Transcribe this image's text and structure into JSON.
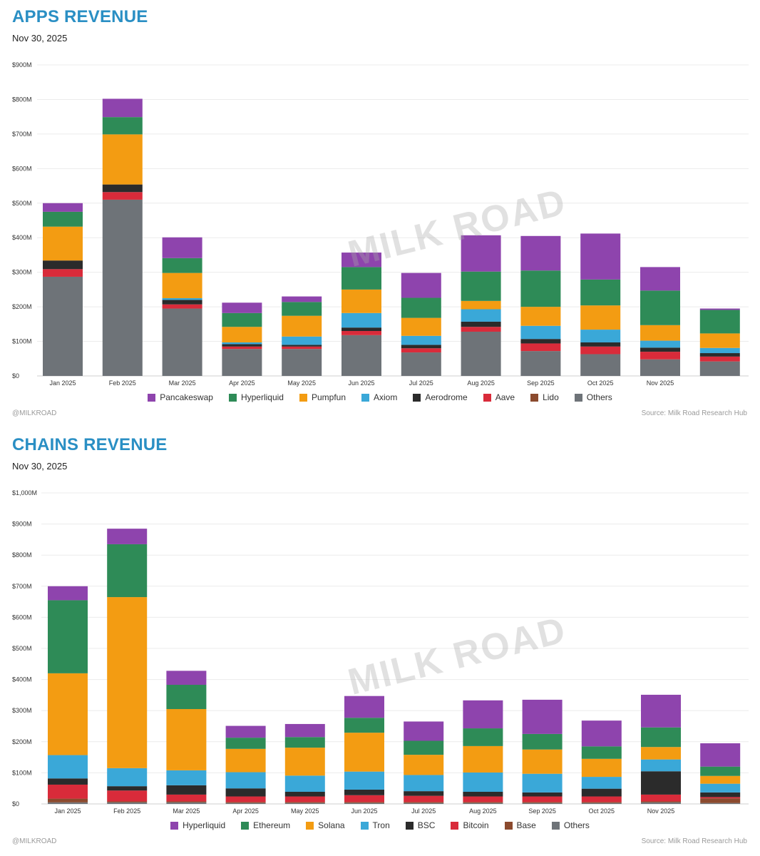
{
  "apps": {
    "title": "APPS REVENUE",
    "date": "Nov 30, 2025",
    "handle": "@MILKROAD",
    "source": "Source: Milk Road Research Hub",
    "watermark": "MILK ROAD",
    "chart_data": {
      "type": "bar",
      "stacked": true,
      "categories": [
        "Jan 2025",
        "Feb 2025",
        "Mar 2025",
        "Apr 2025",
        "May 2025",
        "Jun 2025",
        "Jul 2025",
        "Aug 2025",
        "Sep 2025",
        "Oct 2025",
        "Nov 2025",
        ""
      ],
      "y_ticks": [
        "$0",
        "$100M",
        "$200M",
        "$300M",
        "$400M",
        "$500M",
        "$600M",
        "$700M",
        "$800M",
        "$900M"
      ],
      "ylim": [
        0,
        900
      ],
      "unit": "$M",
      "grid": true,
      "legend_position": "bottom",
      "series": [
        {
          "name": "Others",
          "color": "#6e7378",
          "values": [
            287,
            510,
            195,
            78,
            78,
            118,
            68,
            128,
            72,
            63,
            48,
            42
          ]
        },
        {
          "name": "Lido",
          "color": "#8b4a2e",
          "values": [
            0,
            0,
            0,
            0,
            0,
            0,
            0,
            0,
            0,
            0,
            0,
            0
          ]
        },
        {
          "name": "Aave",
          "color": "#d92b3a",
          "values": [
            22,
            22,
            12,
            7,
            7,
            12,
            12,
            14,
            22,
            22,
            22,
            14
          ]
        },
        {
          "name": "Aerodrome",
          "color": "#2b2b2b",
          "values": [
            25,
            22,
            13,
            7,
            5,
            10,
            10,
            15,
            13,
            12,
            12,
            10
          ]
        },
        {
          "name": "Axiom",
          "color": "#3aa8d8",
          "values": [
            0,
            0,
            5,
            5,
            24,
            42,
            26,
            36,
            38,
            37,
            20,
            15
          ]
        },
        {
          "name": "Pumpfun",
          "color": "#f39c12",
          "values": [
            98,
            145,
            73,
            45,
            60,
            68,
            52,
            24,
            55,
            70,
            45,
            42
          ]
        },
        {
          "name": "Hyperliquid",
          "color": "#2e8b57",
          "values": [
            43,
            50,
            43,
            40,
            40,
            65,
            58,
            85,
            105,
            75,
            100,
            68
          ]
        },
        {
          "name": "Pancakeswap",
          "color": "#8e44ad",
          "values": [
            25,
            53,
            60,
            30,
            16,
            42,
            72,
            105,
            100,
            133,
            68,
            4
          ]
        }
      ],
      "legend_order": [
        "Pancakeswap",
        "Hyperliquid",
        "Pumpfun",
        "Axiom",
        "Aerodrome",
        "Aave",
        "Lido",
        "Others"
      ]
    }
  },
  "chains": {
    "title": "CHAINS REVENUE",
    "date": "Nov 30, 2025",
    "handle": "@MILKROAD",
    "source": "Source: Milk Road Research Hub",
    "watermark": "MILK ROAD",
    "chart_data": {
      "type": "bar",
      "stacked": true,
      "categories": [
        "Jan 2025",
        "Feb 2025",
        "Mar 2025",
        "Apr 2025",
        "May 2025",
        "Jun 2025",
        "Jul 2025",
        "Aug 2025",
        "Sep 2025",
        "Oct 2025",
        "Nov 2025",
        ""
      ],
      "y_ticks": [
        "$0",
        "$100M",
        "$200M",
        "$300M",
        "$400M",
        "$500M",
        "$600M",
        "$700M",
        "$800M",
        "$900M",
        "$1,000M"
      ],
      "ylim": [
        0,
        1000
      ],
      "unit": "$M",
      "grid": true,
      "legend_position": "bottom",
      "series": [
        {
          "name": "Others",
          "color": "#6e7378",
          "values": [
            5,
            5,
            5,
            3,
            3,
            3,
            3,
            3,
            3,
            3,
            5,
            3
          ]
        },
        {
          "name": "Base",
          "color": "#8b4a2e",
          "values": [
            12,
            3,
            3,
            3,
            3,
            3,
            3,
            3,
            3,
            3,
            3,
            15
          ]
        },
        {
          "name": "Bitcoin",
          "color": "#d92b3a",
          "values": [
            45,
            35,
            22,
            18,
            18,
            22,
            20,
            18,
            18,
            18,
            22,
            4
          ]
        },
        {
          "name": "BSC",
          "color": "#2b2b2b",
          "values": [
            20,
            14,
            30,
            26,
            15,
            18,
            15,
            15,
            13,
            25,
            75,
            15
          ]
        },
        {
          "name": "Tron",
          "color": "#3aa8d8",
          "values": [
            75,
            58,
            48,
            52,
            52,
            58,
            52,
            62,
            60,
            38,
            38,
            28
          ]
        },
        {
          "name": "Solana",
          "color": "#f39c12",
          "values": [
            263,
            550,
            197,
            75,
            90,
            125,
            65,
            85,
            78,
            58,
            40,
            25
          ]
        },
        {
          "name": "Ethereum",
          "color": "#2e8b57",
          "values": [
            235,
            170,
            78,
            36,
            34,
            48,
            45,
            57,
            50,
            40,
            63,
            30
          ]
        },
        {
          "name": "Hyperliquid",
          "color": "#8e44ad",
          "values": [
            45,
            50,
            45,
            38,
            42,
            70,
            62,
            90,
            110,
            83,
            105,
            75
          ]
        }
      ],
      "legend_order": [
        "Hyperliquid",
        "Ethereum",
        "Solana",
        "Tron",
        "BSC",
        "Bitcoin",
        "Base",
        "Others"
      ]
    }
  }
}
